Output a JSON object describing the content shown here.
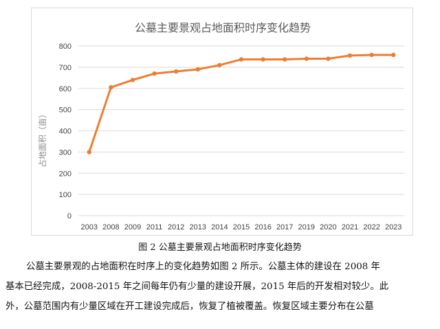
{
  "chart_data": {
    "type": "line",
    "title": "公墓主要景观占地面积时序变化趋势",
    "ylabel": "占地面积（亩）",
    "xlabel": "",
    "categories": [
      "2003",
      "2008",
      "2009",
      "2011",
      "2012",
      "2013",
      "2014",
      "2015",
      "2016",
      "2017",
      "2019",
      "2020",
      "2021",
      "2022",
      "2023"
    ],
    "series": [
      {
        "values": [
          300,
          605,
          640,
          670,
          680,
          690,
          710,
          737,
          737,
          737,
          740,
          740,
          755,
          758,
          758
        ]
      }
    ],
    "ylim": [
      0,
      800
    ],
    "yticks": [
      0,
      100,
      200,
      300,
      400,
      500,
      600,
      700,
      800
    ],
    "grid": true,
    "legend": "none",
    "line_color": "#ED7D31"
  },
  "caption": "图 2  公墓主要景观占地面积时序变化趋势",
  "paragraph": {
    "lines": [
      "公墓主要景观的占地面积在时序上的变化趋势如图 2 所示。公墓主体的建设在 2008 年",
      "基本已经完成，2008-2015 年之间每年仍有少量的建设开展，2015 年后的开发相对较少。此",
      "外，公墓范围内有少量区域在开工建设完成后，恢复了植被覆盖。恢复区域主要分布在公墓"
    ]
  }
}
